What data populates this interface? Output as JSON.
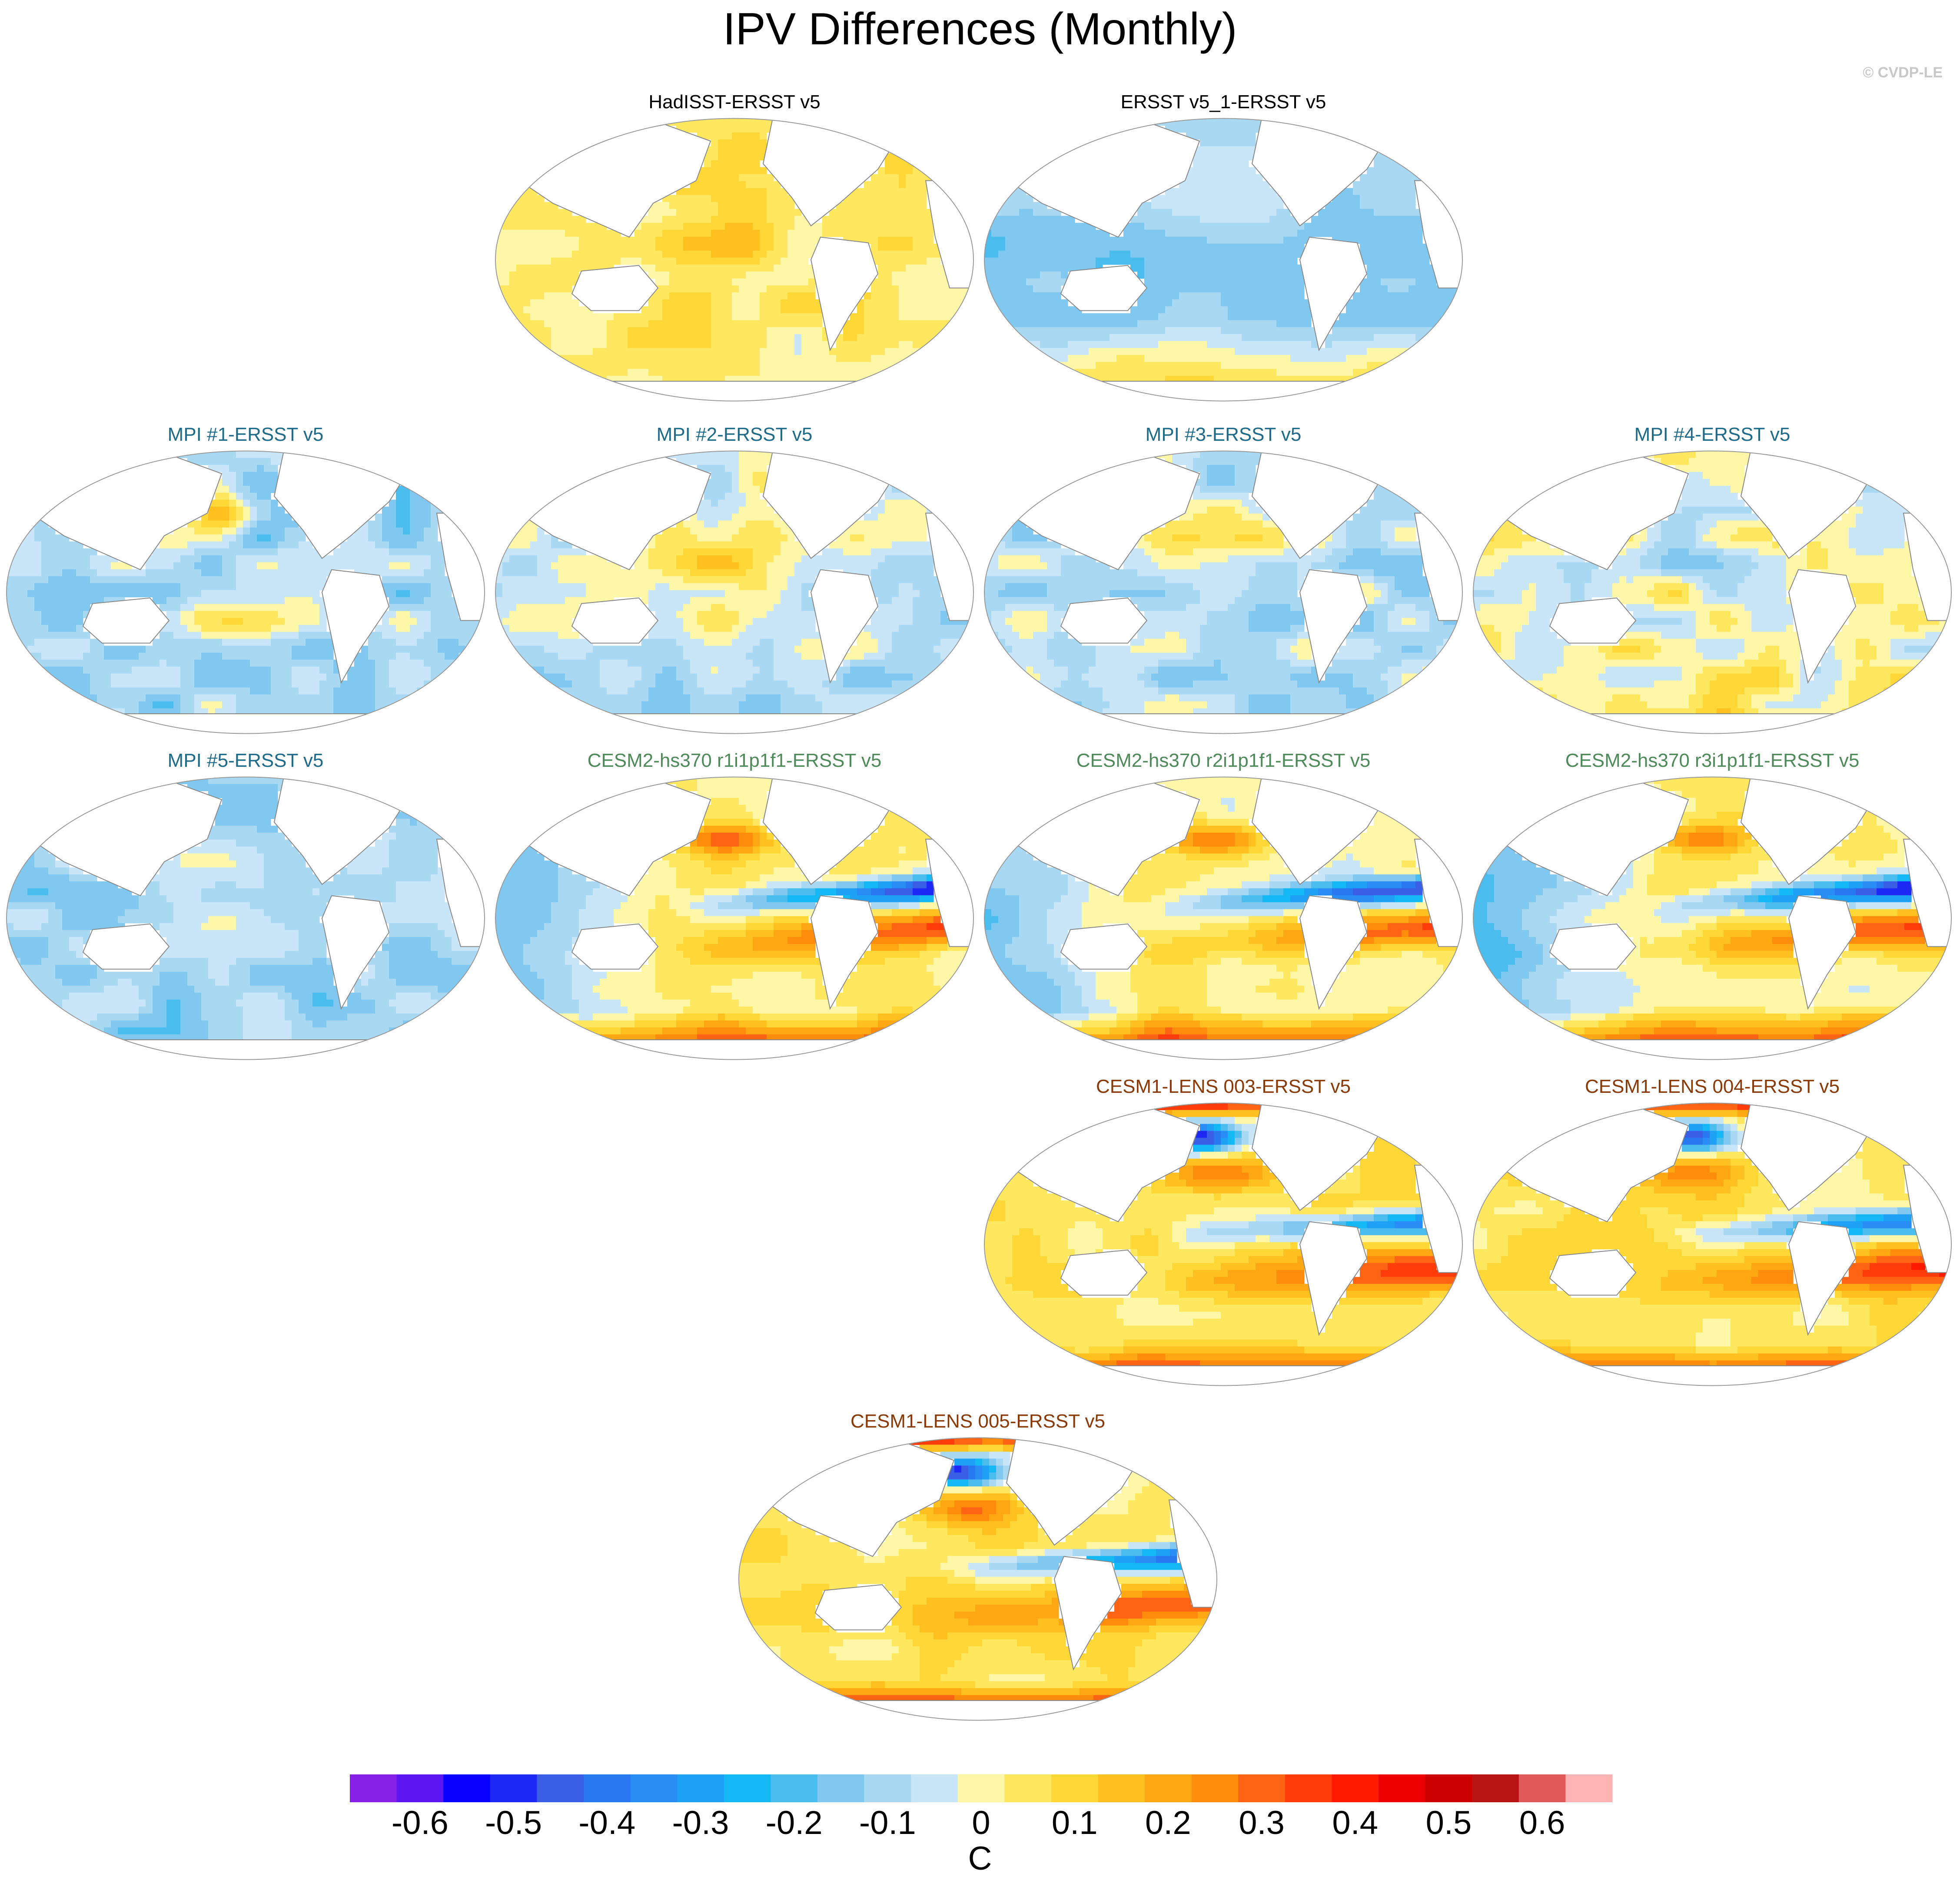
{
  "title": "IPV Differences (Monthly)",
  "credit": "© CVDP-LE",
  "colors": {
    "title_obs": "#000000",
    "title_mpi": "#1f6b8a",
    "title_cesm2": "#4e8a5a",
    "title_cesm1": "#8a3a06",
    "land": "#ffffff",
    "coast": "#888888"
  },
  "panels": [
    {
      "title": "HadISST-ERSST v5",
      "group": "obs",
      "pattern": "hadisst"
    },
    {
      "title": "ERSST v5_1-ERSST v5",
      "group": "obs",
      "pattern": "ersst"
    },
    {
      "title": "MPI #1-ERSST v5",
      "group": "mpi",
      "pattern": "mpi1"
    },
    {
      "title": "MPI #2-ERSST v5",
      "group": "mpi",
      "pattern": "mpi2"
    },
    {
      "title": "MPI #3-ERSST v5",
      "group": "mpi",
      "pattern": "mpi3"
    },
    {
      "title": "MPI #4-ERSST v5",
      "group": "mpi",
      "pattern": "mpi4"
    },
    {
      "title": "MPI #5-ERSST v5",
      "group": "mpi",
      "pattern": "mpi5"
    },
    {
      "title": "CESM2-hs370 r1i1p1f1-ERSST v5",
      "group": "cesm2",
      "pattern": "cesm2a"
    },
    {
      "title": "CESM2-hs370 r2i1p1f1-ERSST v5",
      "group": "cesm2",
      "pattern": "cesm2b"
    },
    {
      "title": "CESM2-hs370 r3i1p1f1-ERSST v5",
      "group": "cesm2",
      "pattern": "cesm2c"
    },
    {
      "title": "CESM1-LENS 003-ERSST v5",
      "group": "cesm1",
      "pattern": "cesm1a"
    },
    {
      "title": "CESM1-LENS 004-ERSST v5",
      "group": "cesm1",
      "pattern": "cesm1b"
    },
    {
      "title": "CESM1-LENS 005-ERSST v5",
      "group": "cesm1",
      "pattern": "cesm1c"
    }
  ],
  "chart_data": {
    "type": "heatmap",
    "projection": "Robinson (centred on Pacific)",
    "variable": "IPV pattern difference",
    "units": "C",
    "colorbar": {
      "labels": [
        "-0.6",
        "-0.5",
        "-0.4",
        "-0.3",
        "-0.2",
        "-0.1",
        "0",
        "0.1",
        "0.2",
        "0.3",
        "0.4",
        "0.5",
        "0.6"
      ],
      "levels": [
        -0.65,
        -0.6,
        -0.55,
        -0.5,
        -0.45,
        -0.4,
        -0.35,
        -0.3,
        -0.25,
        -0.2,
        -0.15,
        -0.1,
        -0.05,
        0,
        0.05,
        0.1,
        0.15,
        0.2,
        0.25,
        0.3,
        0.35,
        0.4,
        0.45,
        0.5,
        0.55,
        0.6,
        0.65
      ],
      "colors": [
        "#8620e8",
        "#5c16f2",
        "#0a00ff",
        "#1e28f5",
        "#3b5ee6",
        "#2878f0",
        "#2a8cf5",
        "#1ea0f5",
        "#14b8f5",
        "#4bbcee",
        "#80c8ef",
        "#a8d8f2",
        "#c8e6f8",
        "#fff7a8",
        "#ffe860",
        "#ffd838",
        "#ffc020",
        "#ffa814",
        "#ff8c0a",
        "#ff6414",
        "#ff3c0a",
        "#ff1a00",
        "#ee0000",
        "#cc0000",
        "#b81414",
        "#e05a5a",
        "#ffb4b4"
      ],
      "unit_label": "C"
    }
  }
}
